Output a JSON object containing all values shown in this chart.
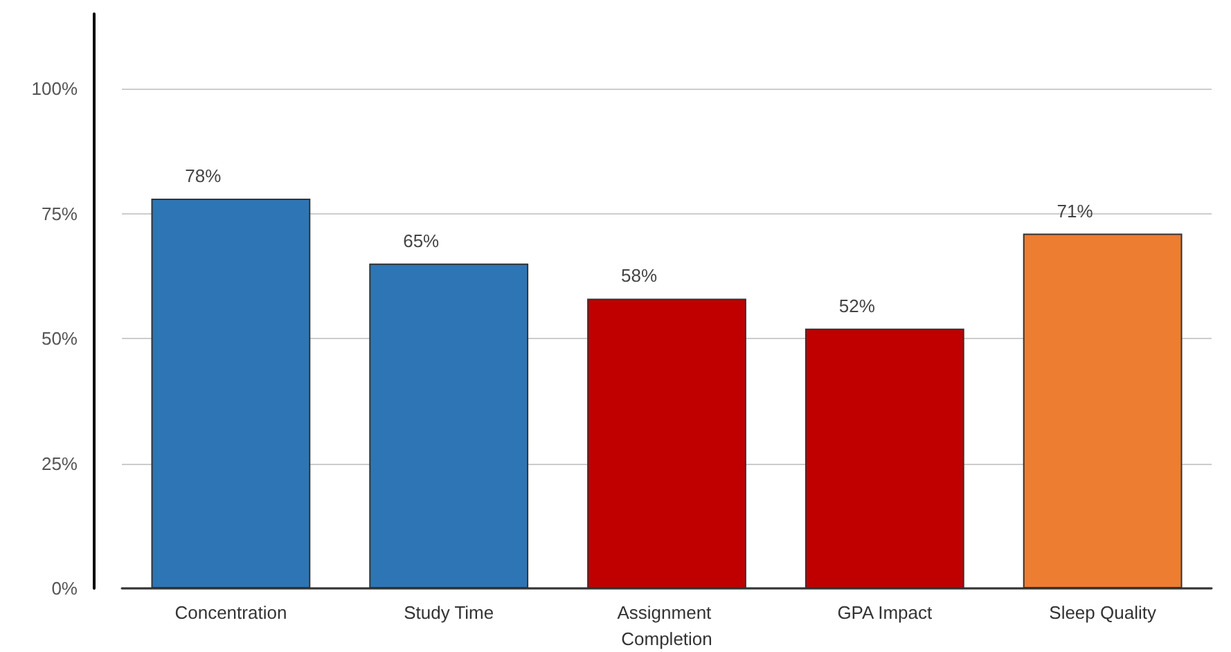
{
  "chart_data": {
    "type": "bar",
    "categories": [
      "Concentration",
      "Study Time",
      "Assignment Completion",
      "GPA Impact",
      "Sleep Quality"
    ],
    "values": [
      78,
      65,
      58,
      52,
      71
    ],
    "colors": [
      "#2e75b6",
      "#2e75b6",
      "#c00000",
      "#c00000",
      "#ed7d31"
    ],
    "value_labels": [
      "78%",
      "65%",
      "58%",
      "52%",
      "71%"
    ],
    "ylim": [
      0,
      115
    ],
    "yticks": [
      {
        "value": 0,
        "label": "0%"
      },
      {
        "value": 25,
        "label": "25%"
      },
      {
        "value": 50,
        "label": "50%"
      },
      {
        "value": 75,
        "label": "75%"
      },
      {
        "value": 100,
        "label": "100%"
      }
    ],
    "grid": "y"
  }
}
